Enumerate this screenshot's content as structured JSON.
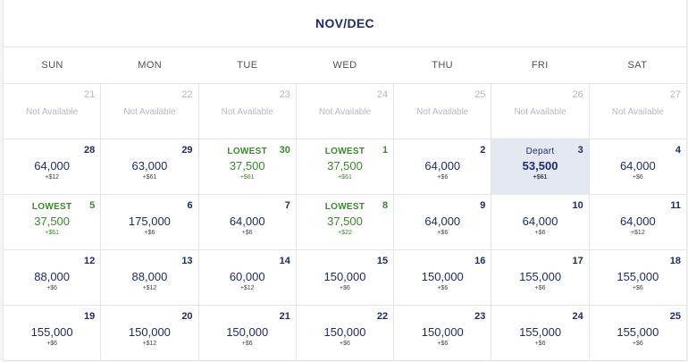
{
  "calendar": {
    "title": "NOV/DEC",
    "weekdays": [
      "SUN",
      "MON",
      "TUE",
      "WED",
      "THU",
      "FRI",
      "SAT"
    ],
    "na_label": "Not Available",
    "weeks": [
      [
        {
          "day": "21",
          "status": "na"
        },
        {
          "day": "22",
          "status": "na"
        },
        {
          "day": "23",
          "status": "na"
        },
        {
          "day": "24",
          "status": "na"
        },
        {
          "day": "25",
          "status": "na"
        },
        {
          "day": "26",
          "status": "na"
        },
        {
          "day": "27",
          "status": "na"
        }
      ],
      [
        {
          "day": "28",
          "status": "available",
          "points": "64,000",
          "fee": "+$12"
        },
        {
          "day": "29",
          "status": "available",
          "points": "63,000",
          "fee": "+$61"
        },
        {
          "day": "30",
          "status": "lowest",
          "tag": "LOWEST",
          "points": "37,500",
          "fee": "+$61"
        },
        {
          "day": "1",
          "status": "lowest",
          "tag": "LOWEST",
          "points": "37,500",
          "fee": "+$61"
        },
        {
          "day": "2",
          "status": "available",
          "points": "64,000",
          "fee": "+$6"
        },
        {
          "day": "3",
          "status": "selected",
          "tag": "Depart",
          "points": "53,500",
          "fee": "+$61"
        },
        {
          "day": "4",
          "status": "available",
          "points": "64,000",
          "fee": "+$6"
        }
      ],
      [
        {
          "day": "5",
          "status": "lowest",
          "tag": "LOWEST",
          "points": "37,500",
          "fee": "+$61"
        },
        {
          "day": "6",
          "status": "available",
          "points": "175,000",
          "fee": "+$6"
        },
        {
          "day": "7",
          "status": "available",
          "points": "64,000",
          "fee": "+$6"
        },
        {
          "day": "8",
          "status": "lowest",
          "tag": "LOWEST",
          "points": "37,500",
          "fee": "+$22"
        },
        {
          "day": "9",
          "status": "available",
          "points": "64,000",
          "fee": "+$6"
        },
        {
          "day": "10",
          "status": "available",
          "points": "64,000",
          "fee": "+$6"
        },
        {
          "day": "11",
          "status": "available",
          "points": "64,000",
          "fee": "+$12"
        }
      ],
      [
        {
          "day": "12",
          "status": "available",
          "points": "88,000",
          "fee": "+$6"
        },
        {
          "day": "13",
          "status": "available",
          "points": "88,000",
          "fee": "+$12"
        },
        {
          "day": "14",
          "status": "available",
          "points": "60,000",
          "fee": "+$12"
        },
        {
          "day": "15",
          "status": "available",
          "points": "150,000",
          "fee": "+$6"
        },
        {
          "day": "16",
          "status": "available",
          "points": "150,000",
          "fee": "+$6"
        },
        {
          "day": "17",
          "status": "available",
          "points": "155,000",
          "fee": "+$6"
        },
        {
          "day": "18",
          "status": "available",
          "points": "155,000",
          "fee": "+$6"
        }
      ],
      [
        {
          "day": "19",
          "status": "available",
          "points": "155,000",
          "fee": "+$6"
        },
        {
          "day": "20",
          "status": "available",
          "points": "150,000",
          "fee": "+$12"
        },
        {
          "day": "21",
          "status": "available",
          "points": "150,000",
          "fee": "+$6"
        },
        {
          "day": "22",
          "status": "available",
          "points": "150,000",
          "fee": "+$6"
        },
        {
          "day": "23",
          "status": "available",
          "points": "150,000",
          "fee": "+$6"
        },
        {
          "day": "24",
          "status": "available",
          "points": "155,000",
          "fee": "+$6"
        },
        {
          "day": "25",
          "status": "available",
          "points": "155,000",
          "fee": "+$6"
        }
      ]
    ]
  },
  "colors": {
    "heading": "#1f2a6b",
    "lowest": "#3a8a2a",
    "unavailable": "#b5b8c0",
    "selected_bg": "#e4e8f1",
    "grid_line": "#e3e5ea"
  }
}
